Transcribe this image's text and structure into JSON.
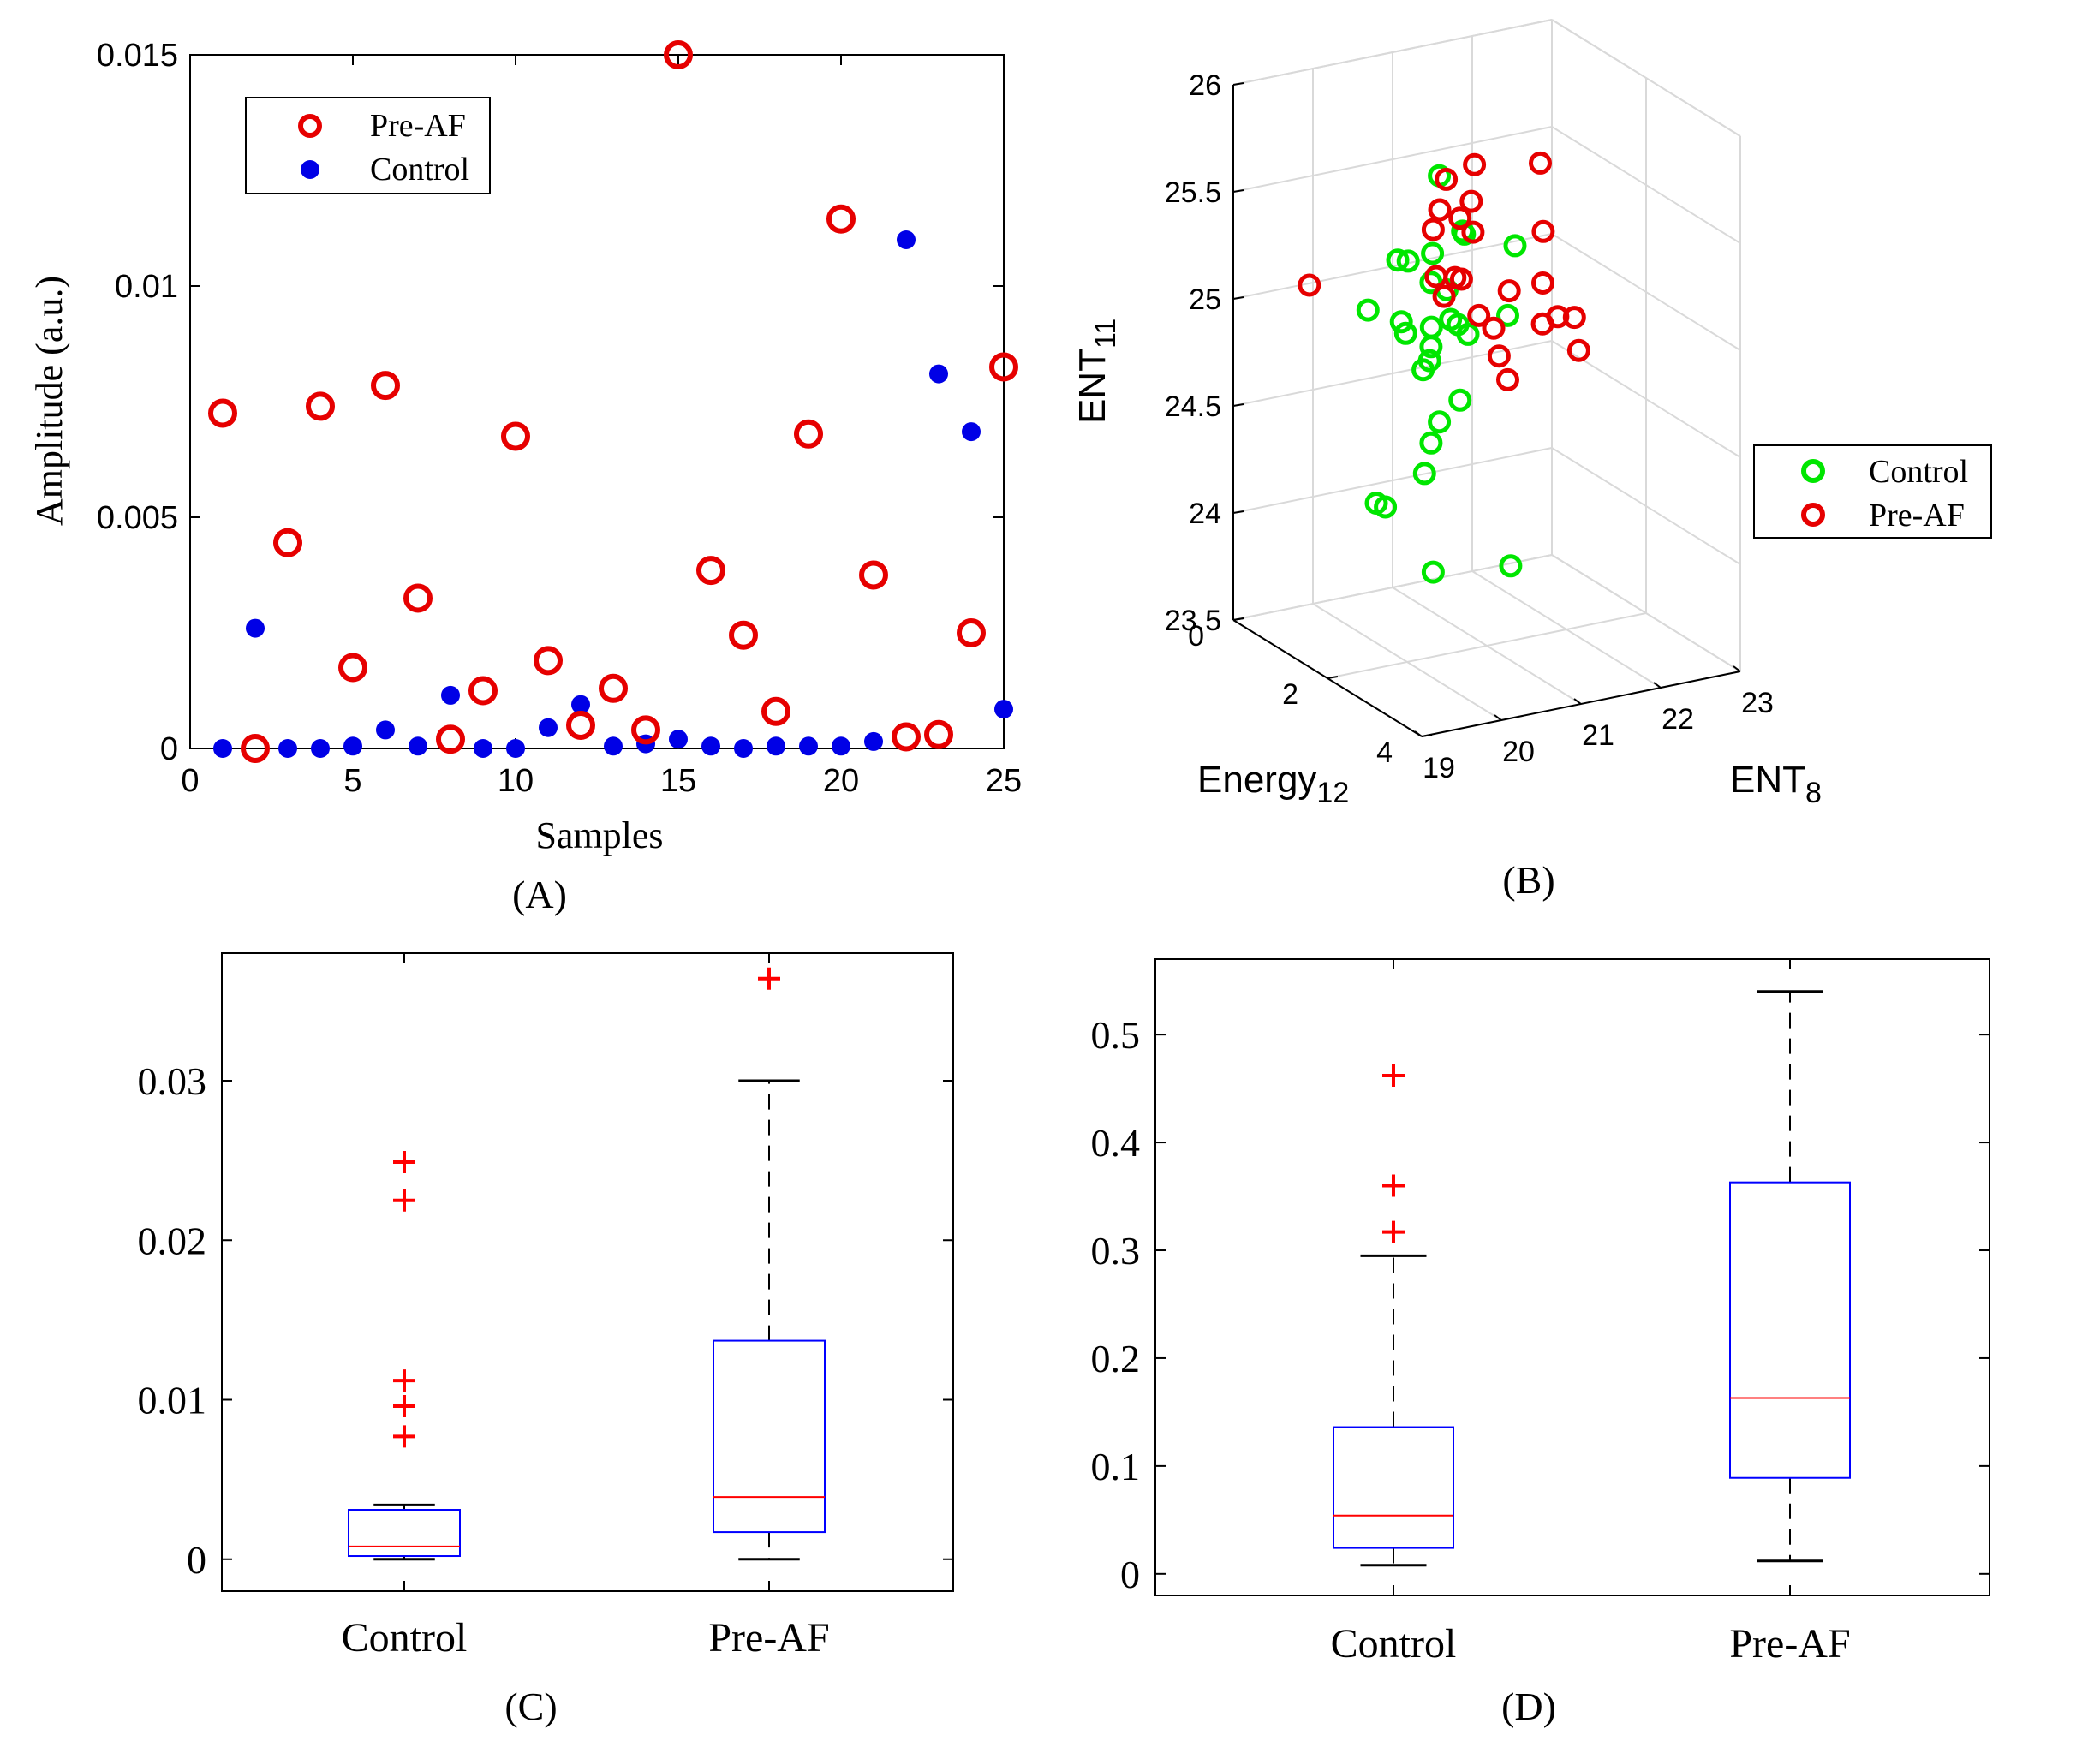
{
  "colors": {
    "pre_af": "#e60000",
    "control_a": "#0000e6",
    "control_b": "#00e600",
    "box": "#0000ff",
    "median": "#ff0000",
    "outlier": "#ff0000",
    "axis": "#000000",
    "grid": "#d9d9d9"
  },
  "chart_data": [
    {
      "panel": "A",
      "caption": "(A)",
      "type": "scatter",
      "xlabel": "Samples",
      "ylabel": "Amplitude (a.u.)",
      "xlim": [
        0,
        25
      ],
      "ylim": [
        0,
        0.015
      ],
      "xticks": [
        "0",
        "5",
        "10",
        "15",
        "20",
        "25"
      ],
      "yticks": [
        "0",
        "0.005",
        "0.01",
        "0.015"
      ],
      "legend": {
        "position": "top-left",
        "entries": [
          "Pre-AF",
          "Control"
        ]
      },
      "series": [
        {
          "name": "Pre-AF",
          "marker": "open-circle",
          "x": [
            1,
            2,
            3,
            4,
            5,
            6,
            7,
            8,
            9,
            10,
            11,
            12,
            13,
            14,
            15,
            16,
            17,
            18,
            19,
            20,
            21,
            22,
            23,
            24,
            25
          ],
          "y": [
            0.00725,
            0.0,
            0.00445,
            0.0074,
            0.00175,
            0.00785,
            0.00325,
            0.0002,
            0.00125,
            0.00675,
            0.0019,
            0.0005,
            0.0013,
            0.0004,
            0.015,
            0.00385,
            0.00245,
            0.0008,
            0.0068,
            0.01145,
            0.00375,
            0.00025,
            0.0003,
            0.0025,
            0.00825
          ]
        },
        {
          "name": "Control",
          "marker": "filled-circle",
          "x": [
            1,
            2,
            3,
            4,
            5,
            6,
            7,
            8,
            9,
            10,
            11,
            12,
            13,
            14,
            15,
            16,
            17,
            18,
            19,
            20,
            21,
            22,
            23,
            24,
            25
          ],
          "y": [
            0.0,
            0.0026,
            0.0,
            0.0,
            5e-05,
            0.0004,
            5e-05,
            0.00115,
            0.0,
            0.0,
            0.00045,
            0.00095,
            5e-05,
            0.0001,
            0.0002,
            5e-05,
            0.0,
            5e-05,
            5e-05,
            5e-05,
            0.00015,
            0.011,
            0.0081,
            0.00685,
            0.00085
          ]
        }
      ]
    },
    {
      "panel": "B",
      "caption": "(B)",
      "type": "scatter3d",
      "xlabel": "ENT",
      "xlabel_sub": "8",
      "ylabel": "Energy",
      "ylabel_sub": "12",
      "zlabel": "ENT",
      "zlabel_sub": "11",
      "xlim": [
        19,
        23
      ],
      "ylim": [
        0,
        4
      ],
      "zlim": [
        23.5,
        26
      ],
      "xticks": [
        "19",
        "20",
        "21",
        "22",
        "23"
      ],
      "yticks": [
        "0",
        "2",
        "4"
      ],
      "zticks": [
        "23.5",
        "24",
        "24.5",
        "25",
        "25.5",
        "26"
      ],
      "legend": {
        "position": "bottom-right",
        "entries": [
          "Control",
          "Pre-AF"
        ]
      },
      "series": [
        {
          "name": "Control",
          "marker": "open-circle",
          "x": [
            20.4,
            20.9,
            20.4,
            20.6,
            20.2,
            20.5,
            20.0,
            20.3,
            20.1,
            20.9,
            21.0,
            20.2,
            20.4,
            20.6,
            20.9,
            20.3,
            20.1,
            20.7,
            20.2,
            20.5,
            20.8,
            21.3,
            21.5,
            20.4,
            20.7,
            21.0,
            20.1,
            20.3
          ],
          "y": [
            1.2,
            0.5,
            2.5,
            2.2,
            2.2,
            2.0,
            1.8,
            2.0,
            1.8,
            1.4,
            1.6,
            2.0,
            1.8,
            1.5,
            1.6,
            2.0,
            2.2,
            1.5,
            1.2,
            0.5,
            1.2,
            2.0,
            1.6,
            2.4,
            1.5,
            2.6,
            1.0,
            2.0
          ],
          "z": [
            24.95,
            25.1,
            25.55,
            25.48,
            25.42,
            25.2,
            25.35,
            25.25,
            25.0,
            24.95,
            24.9,
            24.85,
            24.85,
            24.95,
            24.6,
            24.5,
            24.4,
            24.5,
            24.1,
            24.0,
            23.75,
            23.85,
            24.95,
            25.1,
            25.65,
            25.45,
            25.0,
            24.95
          ]
        },
        {
          "name": "Pre-AF",
          "marker": "open-circle",
          "x": [
            19.6,
            21.2,
            20.6,
            20.8,
            21.0,
            20.9,
            21.1,
            21.3,
            21.2,
            20.8,
            20.6,
            21.4,
            21.5,
            22.0,
            22.3,
            22.5,
            21.8,
            22.1,
            21.5,
            21.7,
            21.3,
            20.7,
            20.9,
            20.8
          ],
          "y": [
            0.6,
            1.4,
            1.6,
            1.2,
            1.0,
            1.6,
            1.5,
            1.2,
            0.8,
            2.6,
            2.0,
            1.8,
            1.3,
            1.5,
            1.0,
            0.6,
            2.6,
            2.0,
            1.6,
            2.0,
            3.0,
            1.6,
            2.0,
            1.8
          ],
          "z": [
            25.1,
            25.65,
            25.2,
            25.35,
            25.4,
            25.45,
            25.5,
            25.3,
            25.5,
            24.95,
            25.25,
            25.1,
            24.85,
            25.05,
            25.2,
            25.45,
            24.9,
            24.95,
            24.65,
            24.95,
            25.15,
            25.1,
            25.05,
            25.2
          ]
        }
      ]
    },
    {
      "panel": "C",
      "caption": "(C)",
      "type": "box",
      "categories": [
        "Control",
        "Pre-AF"
      ],
      "ylim": [
        -0.002,
        0.038
      ],
      "yticks": [
        "0",
        "0.01",
        "0.02",
        "0.03"
      ],
      "boxes": [
        {
          "name": "Control",
          "whisker_low": 0.0,
          "q1": 0.0002,
          "median": 0.0008,
          "q3": 0.0031,
          "whisker_high": 0.0034,
          "outliers": [
            0.0077,
            0.0096,
            0.0112,
            0.0225,
            0.0249
          ]
        },
        {
          "name": "Pre-AF",
          "whisker_low": 0.0,
          "q1": 0.0017,
          "median": 0.0039,
          "q3": 0.0137,
          "whisker_high": 0.03,
          "outliers": [
            0.0364
          ]
        }
      ]
    },
    {
      "panel": "D",
      "caption": "(D)",
      "type": "box",
      "categories": [
        "Control",
        "Pre-AF"
      ],
      "ylim": [
        -0.02,
        0.57
      ],
      "yticks": [
        "0",
        "0.1",
        "0.2",
        "0.3",
        "0.4",
        "0.5"
      ],
      "boxes": [
        {
          "name": "Control",
          "whisker_low": 0.008,
          "q1": 0.024,
          "median": 0.054,
          "q3": 0.136,
          "whisker_high": 0.295,
          "outliers": [
            0.317,
            0.36,
            0.462
          ]
        },
        {
          "name": "Pre-AF",
          "whisker_low": 0.012,
          "q1": 0.089,
          "median": 0.163,
          "q3": 0.363,
          "whisker_high": 0.54,
          "outliers": []
        }
      ]
    }
  ]
}
